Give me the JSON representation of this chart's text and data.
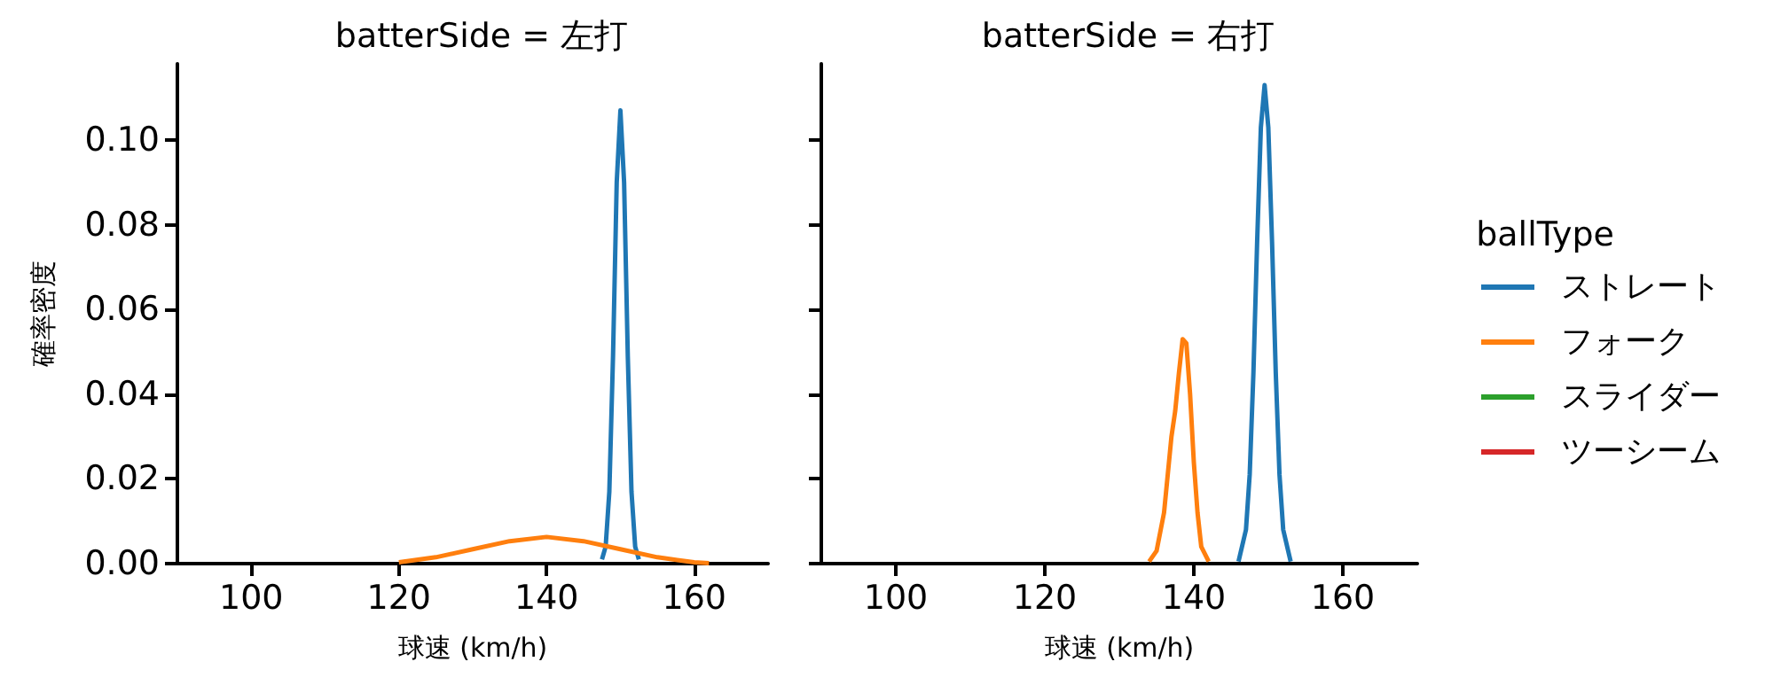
{
  "chart_data": [
    {
      "type": "line",
      "title": "batterSide = 左打",
      "xlabel": "球速 (km/h)",
      "ylabel": "確率密度",
      "xlim": [
        90,
        170
      ],
      "xticks": [
        100,
        120,
        140,
        160
      ],
      "ylim": [
        0,
        0.118
      ],
      "yticks": [
        {
          "value": 0,
          "label": "0.00"
        },
        {
          "value": 0.02,
          "label": "0.02"
        },
        {
          "value": 0.04,
          "label": "0.04"
        },
        {
          "value": 0.06,
          "label": "0.06"
        },
        {
          "value": 0.08,
          "label": "0.08"
        },
        {
          "value": 0.1,
          "label": "0.10"
        }
      ],
      "grid": false,
      "legend": false,
      "marker": "none",
      "line_style": "solid",
      "series": [
        {
          "color": "#1f77b4",
          "x": [
            147.5,
            148,
            148.5,
            149,
            149.5,
            150,
            150.5,
            151,
            151.5,
            152,
            152.5
          ],
          "values": [
            0.001,
            0.004,
            0.017,
            0.049,
            0.09,
            0.107,
            0.09,
            0.049,
            0.017,
            0.004,
            0.001
          ]
        },
        {
          "color": "#ff7f0e",
          "x": [
            120,
            125,
            130,
            135,
            140,
            145,
            150,
            155,
            160,
            162
          ],
          "values": [
            0.0003,
            0.0015,
            0.0034,
            0.0053,
            0.0063,
            0.0053,
            0.0034,
            0.0015,
            0.0003,
            0.0001
          ]
        }
      ]
    },
    {
      "type": "line",
      "title": "batterSide = 右打",
      "xlabel": "球速 (km/h)",
      "legend_title": "ballType",
      "xlim": [
        90,
        170
      ],
      "xticks": [
        100,
        120,
        140,
        160
      ],
      "ylim": [
        0,
        0.118
      ],
      "yticks": [
        0,
        0.02,
        0.04,
        0.06,
        0.08,
        0.1
      ],
      "tick_labels": "x",
      "grid": false,
      "legend": "right",
      "marker": "none",
      "line_style": "solid",
      "series": [
        {
          "name": "ストレート",
          "color": "#1f77b4",
          "x": [
            146,
            147,
            147.5,
            148,
            148.5,
            149,
            149.5,
            150,
            150.5,
            151,
            151.5,
            152,
            153
          ],
          "values": [
            0.0005,
            0.008,
            0.021,
            0.045,
            0.076,
            0.103,
            0.113,
            0.103,
            0.076,
            0.045,
            0.021,
            0.008,
            0.0005
          ]
        },
        {
          "name": "フォーク",
          "color": "#ff7f0e",
          "x": [
            134,
            135,
            136,
            137,
            137.5,
            138,
            138.5,
            139,
            139.5,
            140,
            140.5,
            141,
            142
          ],
          "values": [
            0.0005,
            0.003,
            0.012,
            0.03,
            0.036,
            0.045,
            0.053,
            0.052,
            0.04,
            0.024,
            0.012,
            0.004,
            0.0005
          ]
        },
        {
          "name": "スライダー",
          "color": "#2ca02c"
        },
        {
          "name": "ツーシーム",
          "color": "#d62728"
        }
      ]
    }
  ]
}
